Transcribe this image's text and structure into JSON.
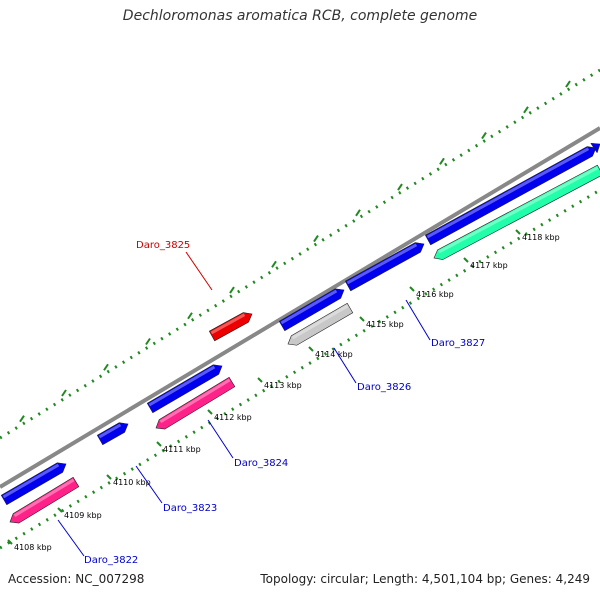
{
  "title": "Dechloromonas aromatica RCB, complete genome",
  "footer": {
    "accession": "Accession: NC_007298",
    "summary": "Topology: circular; Length: 4,501,104 bp; Genes: 4,249"
  },
  "colors": {
    "backbone": "#888888",
    "forward_gene": "#0000ee",
    "reverse_gene": "#ff2288",
    "highlight_gene": "#ee0000",
    "teal_gene": "#22ffaa",
    "grey_gene": "#c8c8c8",
    "tick": "#228822",
    "label_blue": "#0000cc",
    "label_red": "#cc0000"
  },
  "kbp_ticks": [
    "4108 kbp",
    "4109 kbp",
    "4110 kbp",
    "4111 kbp",
    "4112 kbp",
    "4113 kbp",
    "4114 kbp",
    "4115 kbp",
    "4116 kbp",
    "4117 kbp",
    "4118 kbp"
  ],
  "gene_labels": [
    {
      "id": "Daro_3822",
      "color": "blue"
    },
    {
      "id": "Daro_3823",
      "color": "blue"
    },
    {
      "id": "Daro_3824",
      "color": "blue"
    },
    {
      "id": "Daro_3825",
      "color": "red"
    },
    {
      "id": "Daro_3826",
      "color": "blue"
    },
    {
      "id": "Daro_3827",
      "color": "blue"
    }
  ]
}
